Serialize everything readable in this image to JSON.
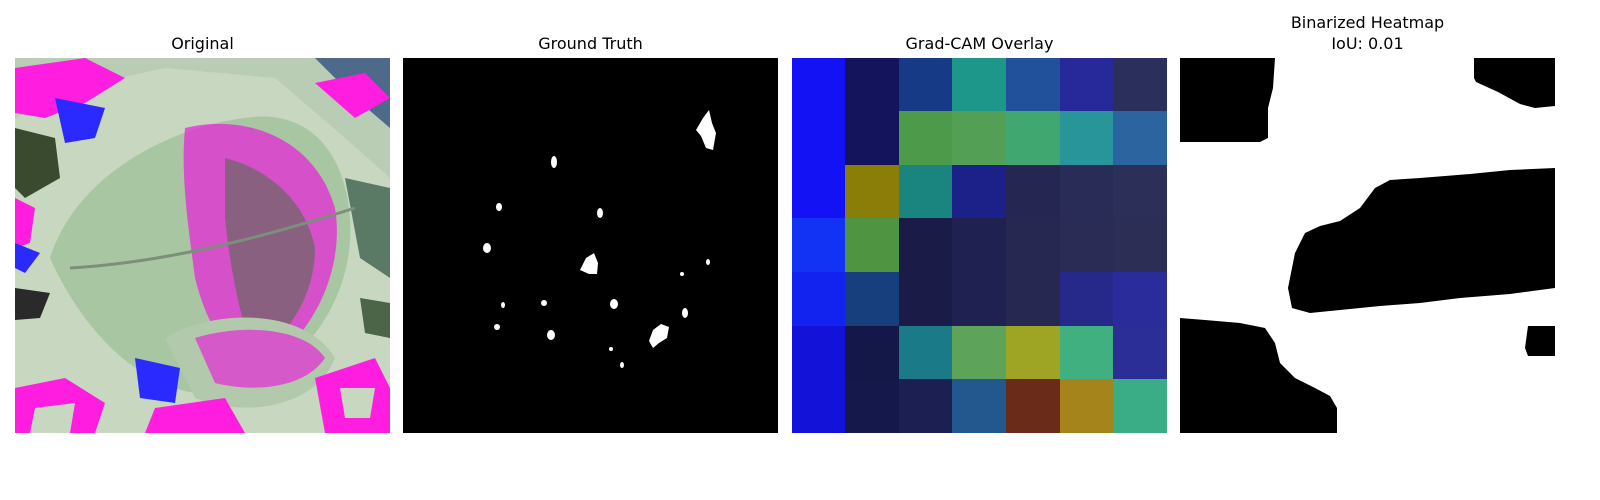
{
  "figure": {
    "panels": [
      {
        "title": "Original"
      },
      {
        "title": "Ground Truth"
      },
      {
        "title": "Grad-CAM Overlay"
      },
      {
        "title": "Binarized Heatmap",
        "subtitle": "IoU: 0.01"
      }
    ],
    "colors": {
      "background": "#ffffff",
      "mask_foreground": "#ffffff",
      "mask_background": "#000000"
    }
  }
}
